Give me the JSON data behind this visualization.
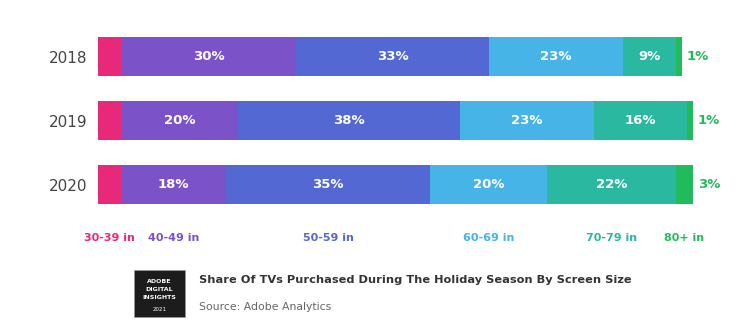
{
  "years": [
    "2018",
    "2019",
    "2020"
  ],
  "categories": [
    "30-39 in",
    "40-49 in",
    "50-59 in",
    "60-69 in",
    "70-79 in",
    "80+ in"
  ],
  "colors": [
    "#e8297a",
    "#7b52c8",
    "#5468d4",
    "#47b4e8",
    "#2ab8a0",
    "#22bb5c"
  ],
  "values": [
    [
      4,
      30,
      33,
      23,
      9,
      1
    ],
    [
      4,
      20,
      38,
      23,
      16,
      1
    ],
    [
      4,
      18,
      35,
      20,
      22,
      3
    ]
  ],
  "bar_labels": [
    [
      "",
      "30%",
      "33%",
      "23%",
      "9%",
      "1%"
    ],
    [
      "",
      "20%",
      "38%",
      "23%",
      "16%",
      "1%"
    ],
    [
      "",
      "18%",
      "35%",
      "20%",
      "22%",
      "3%"
    ]
  ],
  "outside_label_color": "#22bb5c",
  "title": "Share Of TVs Purchased During The Holiday Season By Screen Size",
  "source": "Source: Adobe Analytics",
  "background_color": "#ffffff",
  "bar_height": 0.62,
  "x_tick_label_colors": [
    "#e8297a",
    "#7b52c8",
    "#5468d4",
    "#47b4e8",
    "#2ab8a0",
    "#22bb5c"
  ],
  "total": 100
}
